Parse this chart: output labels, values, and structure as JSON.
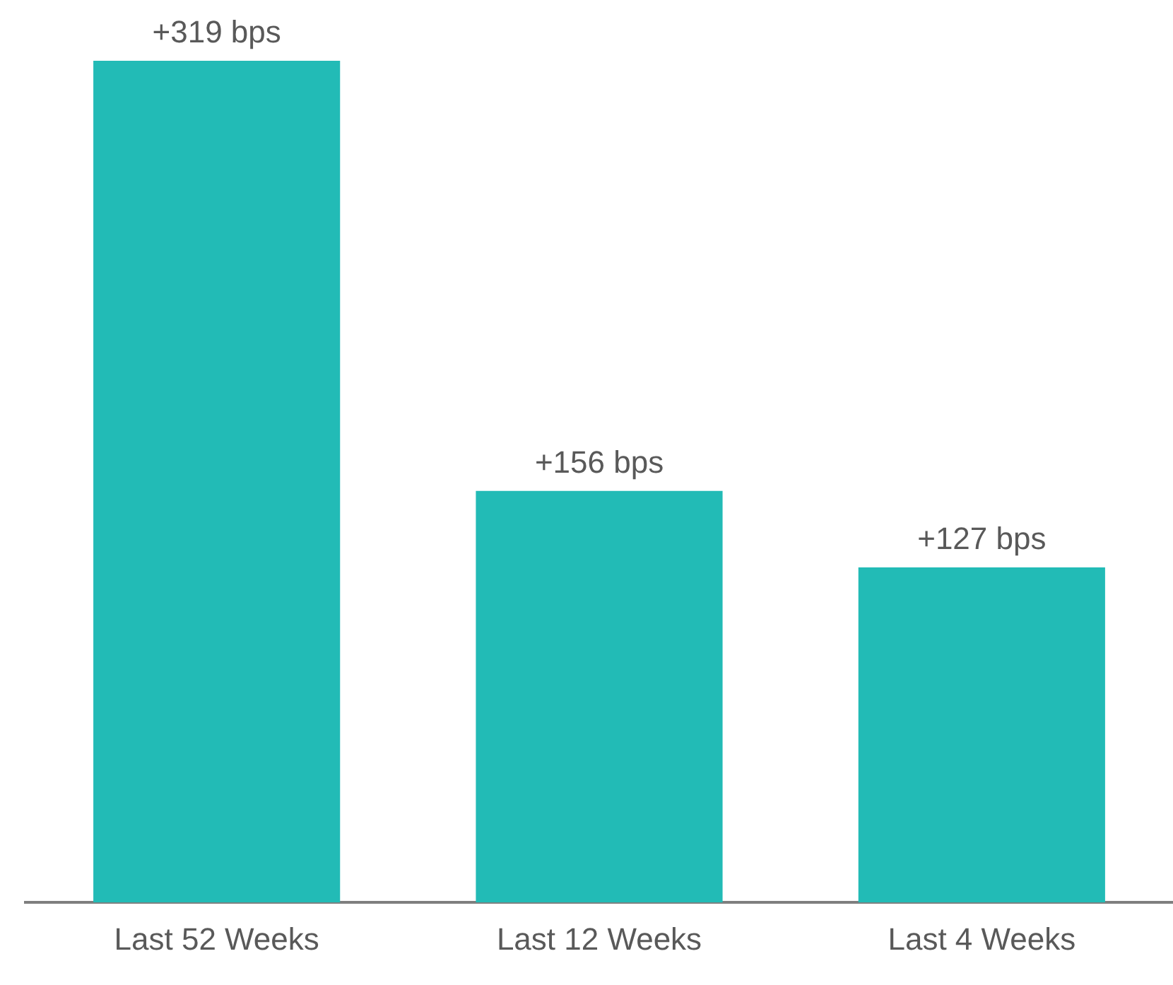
{
  "chart_data": {
    "type": "bar",
    "categories": [
      "Last 52 Weeks",
      "Last 12 Weeks",
      "Last 4 Weeks"
    ],
    "values": [
      319,
      156,
      127
    ],
    "value_labels": [
      "+319 bps",
      "+156 bps",
      "+127 bps"
    ],
    "color": "#22bbb6",
    "grid": false,
    "legend": false
  }
}
